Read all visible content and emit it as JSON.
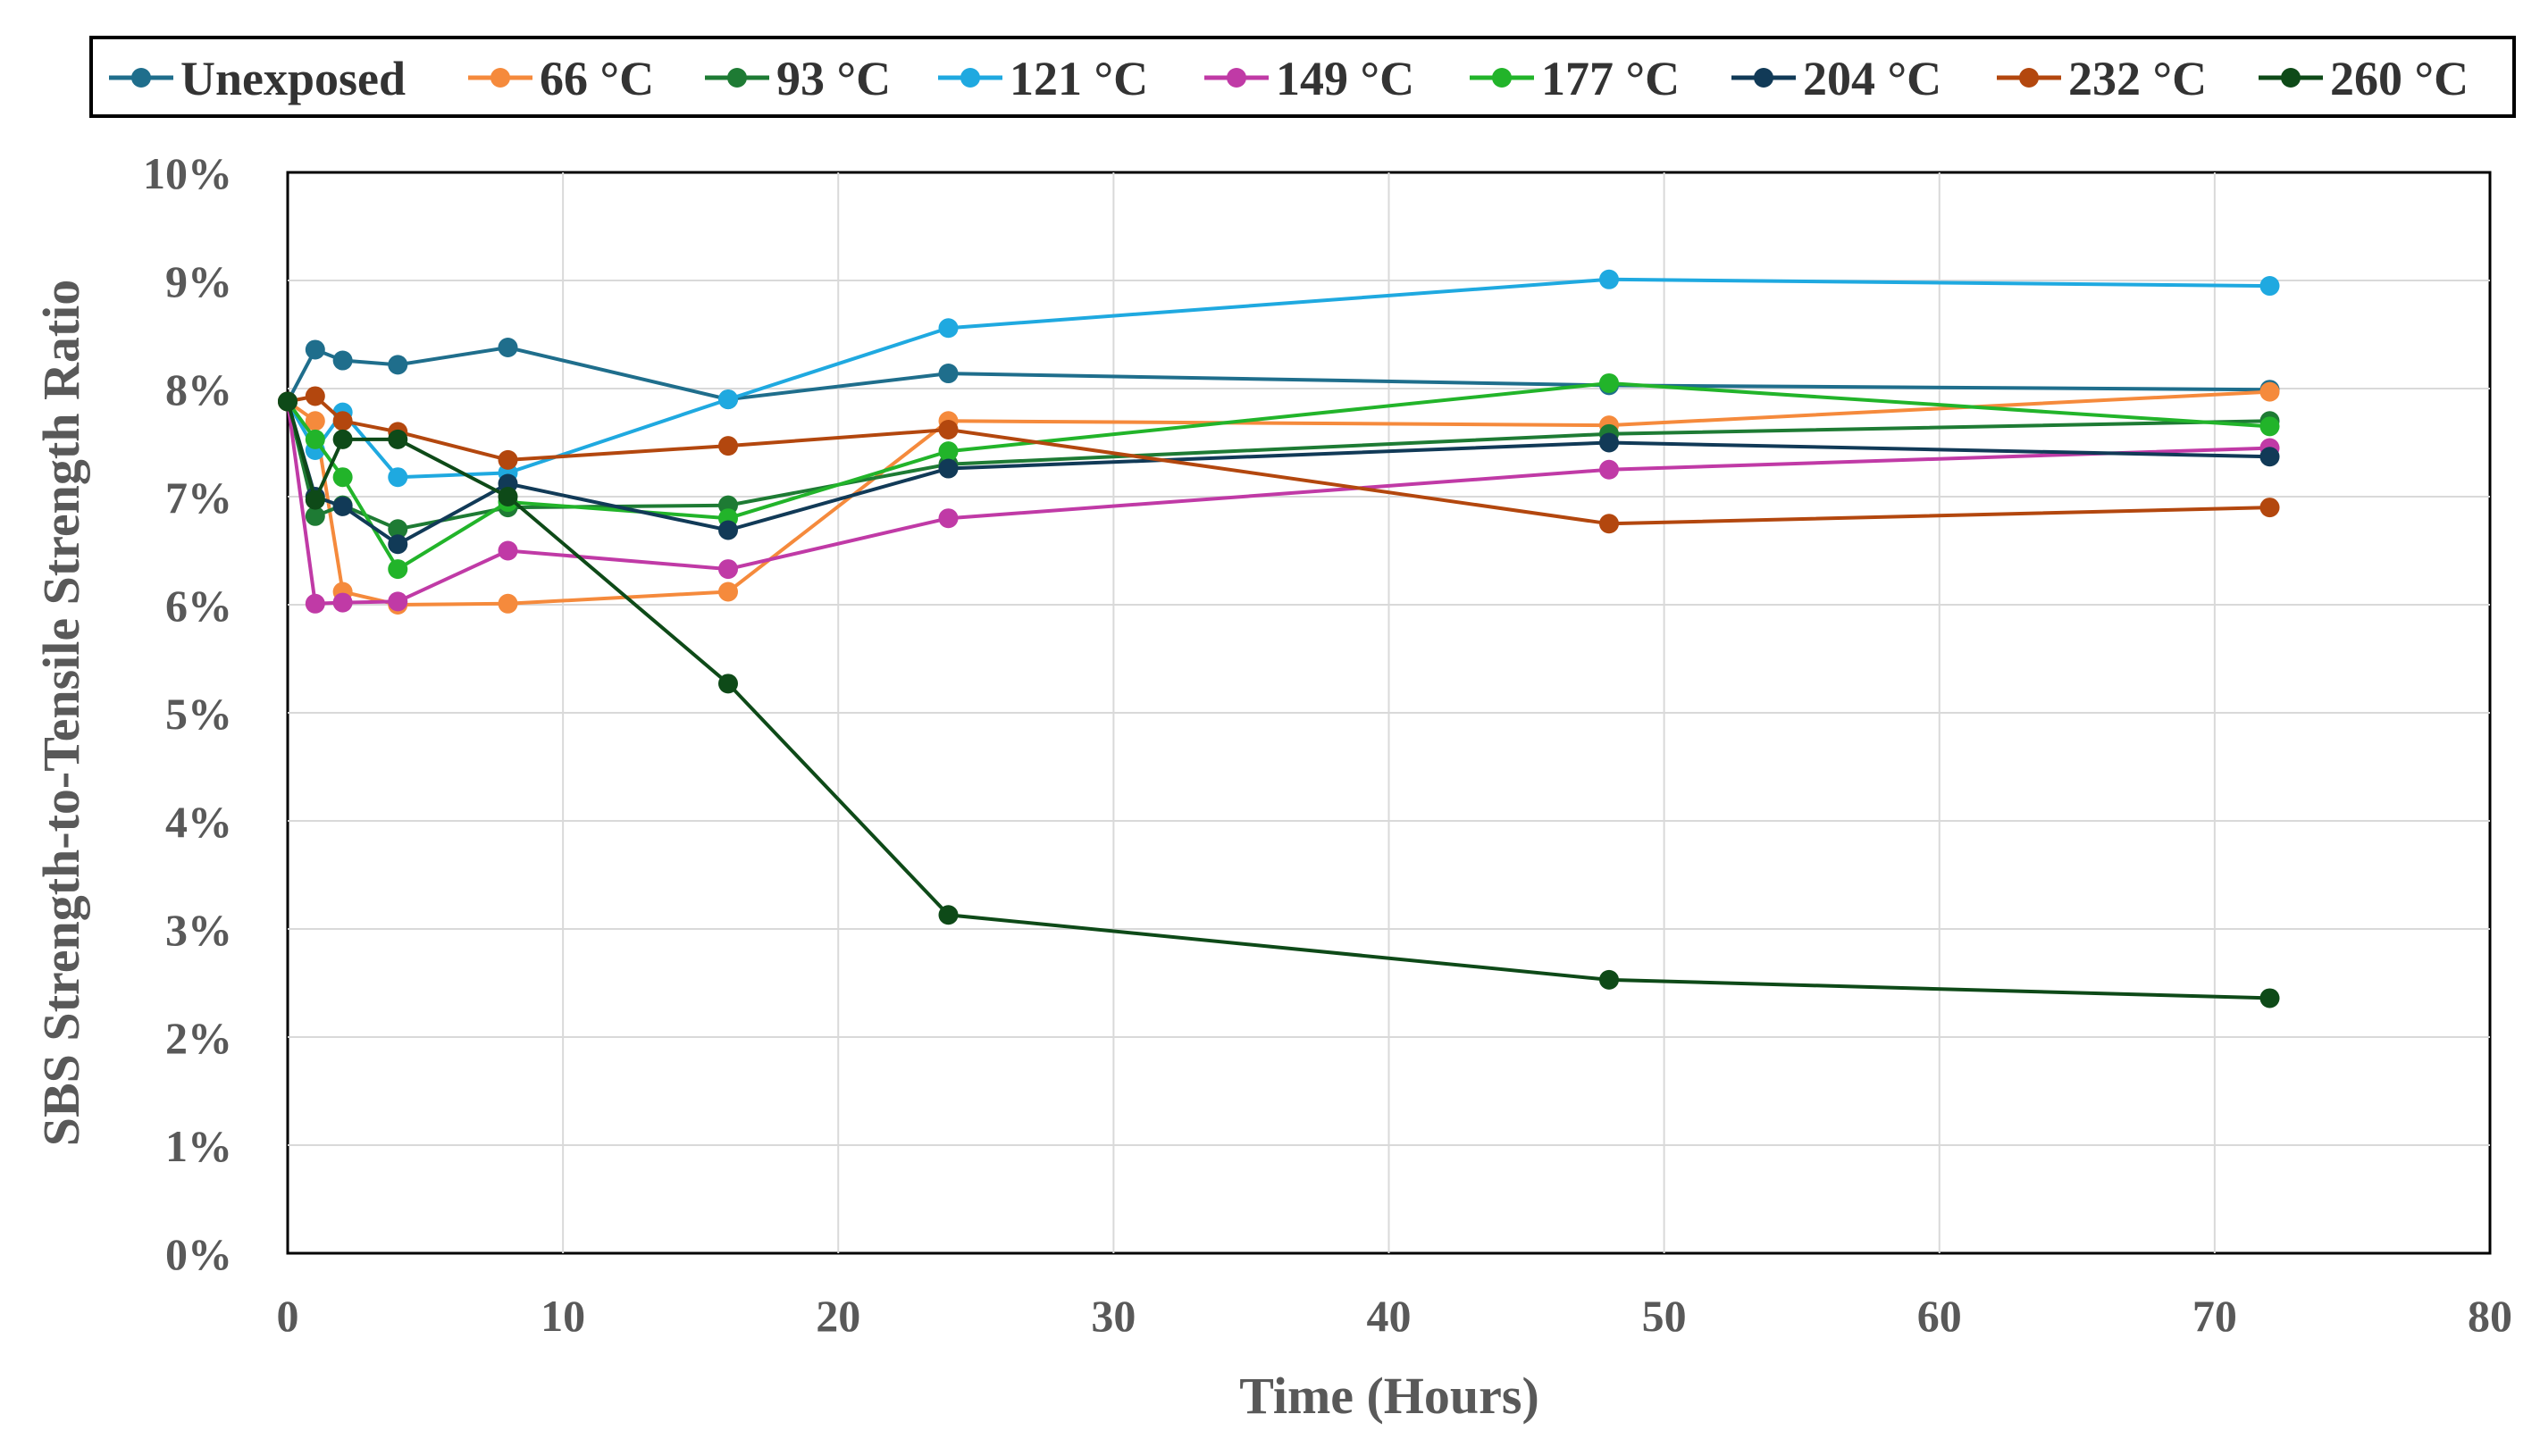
{
  "chart_data": {
    "type": "line",
    "title": "",
    "xlabel": "Time (Hours)",
    "ylabel": "SBS Strength-to-Tensile Strength Ratio",
    "xlim": [
      0,
      80
    ],
    "ylim": [
      0,
      0.1
    ],
    "x_ticks": [
      0,
      10,
      20,
      30,
      40,
      50,
      60,
      70,
      80
    ],
    "y_ticks": [
      0,
      0.01,
      0.02,
      0.03,
      0.04,
      0.05,
      0.06,
      0.07,
      0.08,
      0.09,
      0.1
    ],
    "x_tick_labels": [
      "0",
      "10",
      "20",
      "30",
      "40",
      "50",
      "60",
      "70",
      "80"
    ],
    "y_tick_labels": [
      "0%",
      "1%",
      "2%",
      "3%",
      "4%",
      "5%",
      "6%",
      "7%",
      "8%",
      "9%",
      "10%"
    ],
    "grid": true,
    "legend_position": "top",
    "x": [
      0,
      1,
      2,
      4,
      8,
      16,
      24,
      48,
      72
    ],
    "series": [
      {
        "name": "Unexposed",
        "color": "#1f6e8c",
        "values": [
          0.0788,
          0.0836,
          0.0826,
          0.0822,
          0.0838,
          0.079,
          0.0814,
          0.0803,
          0.0799
        ]
      },
      {
        "name": "66 °C",
        "color": "#f58a3c",
        "values": [
          0.0788,
          0.077,
          0.0612,
          0.06,
          0.0601,
          0.0612,
          0.077,
          0.0766,
          0.0797
        ]
      },
      {
        "name": "93 °C",
        "color": "#1e7b34",
        "values": [
          0.0788,
          0.0682,
          0.0692,
          0.067,
          0.069,
          0.0692,
          0.073,
          0.0758,
          0.077
        ]
      },
      {
        "name": "121 °C",
        "color": "#1fa9e0",
        "values": [
          0.0788,
          0.0743,
          0.0778,
          0.0718,
          0.0722,
          0.079,
          0.0856,
          0.0901,
          0.0895
        ]
      },
      {
        "name": "149 °C",
        "color": "#c03aa6",
        "values": [
          0.0788,
          0.0601,
          0.0602,
          0.0603,
          0.065,
          0.0633,
          0.068,
          0.0725,
          0.0745
        ]
      },
      {
        "name": "177 °C",
        "color": "#22b42a",
        "values": [
          0.0788,
          0.0753,
          0.0718,
          0.0633,
          0.0695,
          0.068,
          0.0742,
          0.0805,
          0.0765
        ]
      },
      {
        "name": "204 °C",
        "color": "#113a57",
        "values": [
          0.0788,
          0.07,
          0.0691,
          0.0656,
          0.0712,
          0.0669,
          0.0726,
          0.075,
          0.0737
        ]
      },
      {
        "name": "232 °C",
        "color": "#b3470e",
        "values": [
          0.0788,
          0.0793,
          0.077,
          0.076,
          0.0734,
          0.0747,
          0.0762,
          0.0675,
          0.069
        ]
      },
      {
        "name": "260 °C",
        "color": "#0e4a18",
        "values": [
          0.0788,
          0.0697,
          0.0753,
          0.0753,
          0.07,
          0.0527,
          0.0313,
          0.0253,
          0.0236
        ]
      }
    ]
  }
}
